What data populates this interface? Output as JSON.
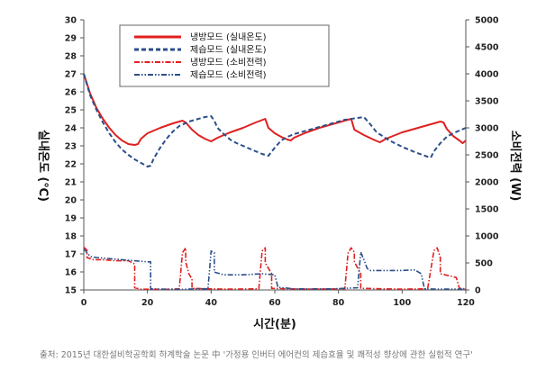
{
  "caption": "출처: 2015년 대한설비학공학회 하계학술 논문 中 '가정용 인버터 에어컨의 제습효율 및 쾌적성 향상에 관한 실험적 연구'",
  "chart_data": {
    "type": "line",
    "xlabel": "시간(분)",
    "ylabel": "실내온도 (℃)",
    "y2label": "소비전력 (W)",
    "xlim": [
      0,
      120
    ],
    "ylim": [
      15,
      30
    ],
    "y2lim": [
      0,
      5000
    ],
    "x_ticks": [
      0,
      20,
      40,
      60,
      80,
      100,
      120
    ],
    "y_ticks": [
      15,
      16,
      17,
      18,
      19,
      20,
      21,
      22,
      23,
      24,
      25,
      26,
      27,
      28,
      29,
      30
    ],
    "y2_ticks": [
      0,
      500,
      1000,
      1500,
      2000,
      2500,
      3000,
      3500,
      4000,
      4500,
      5000
    ],
    "grid": false,
    "legend_position": "top-left",
    "series": [
      {
        "name": "냉방모드 (실내온도)",
        "axis": "left",
        "color": "#e02020",
        "style": "solid",
        "points": [
          [
            0,
            27.0
          ],
          [
            2,
            25.9
          ],
          [
            4,
            25.1
          ],
          [
            6,
            24.5
          ],
          [
            8,
            24.0
          ],
          [
            10,
            23.6
          ],
          [
            12,
            23.3
          ],
          [
            14,
            23.1
          ],
          [
            16,
            23.05
          ],
          [
            17,
            23.1
          ],
          [
            18,
            23.4
          ],
          [
            20,
            23.7
          ],
          [
            24,
            24.0
          ],
          [
            28,
            24.25
          ],
          [
            31,
            24.4
          ],
          [
            32,
            24.3
          ],
          [
            34,
            23.9
          ],
          [
            36,
            23.6
          ],
          [
            38,
            23.4
          ],
          [
            40,
            23.25
          ],
          [
            42,
            23.45
          ],
          [
            46,
            23.75
          ],
          [
            50,
            24.0
          ],
          [
            54,
            24.3
          ],
          [
            57,
            24.5
          ],
          [
            58,
            24.0
          ],
          [
            60,
            23.7
          ],
          [
            62,
            23.5
          ],
          [
            64,
            23.35
          ],
          [
            65,
            23.3
          ],
          [
            66,
            23.45
          ],
          [
            70,
            23.75
          ],
          [
            74,
            24.0
          ],
          [
            78,
            24.2
          ],
          [
            82,
            24.4
          ],
          [
            84,
            24.5
          ],
          [
            85,
            23.9
          ],
          [
            88,
            23.6
          ],
          [
            91,
            23.35
          ],
          [
            93,
            23.2
          ],
          [
            95,
            23.4
          ],
          [
            100,
            23.75
          ],
          [
            105,
            24.0
          ],
          [
            110,
            24.25
          ],
          [
            112,
            24.35
          ],
          [
            113,
            24.3
          ],
          [
            114,
            23.95
          ],
          [
            116,
            23.55
          ],
          [
            118,
            23.3
          ],
          [
            119,
            23.15
          ],
          [
            120,
            23.3
          ]
        ]
      },
      {
        "name": "제습모드 (실내온도)",
        "axis": "left",
        "color": "#2c4f8a",
        "style": "dashed",
        "points": [
          [
            0,
            27.0
          ],
          [
            2,
            25.8
          ],
          [
            4,
            25.0
          ],
          [
            6,
            24.3
          ],
          [
            8,
            23.7
          ],
          [
            10,
            23.2
          ],
          [
            12,
            22.8
          ],
          [
            14,
            22.5
          ],
          [
            16,
            22.25
          ],
          [
            18,
            22.05
          ],
          [
            20,
            21.85
          ],
          [
            21,
            21.9
          ],
          [
            22,
            22.3
          ],
          [
            24,
            22.9
          ],
          [
            26,
            23.4
          ],
          [
            28,
            23.8
          ],
          [
            30,
            24.1
          ],
          [
            33,
            24.35
          ],
          [
            36,
            24.5
          ],
          [
            38,
            24.6
          ],
          [
            40,
            24.65
          ],
          [
            41,
            24.4
          ],
          [
            42,
            24.0
          ],
          [
            44,
            23.65
          ],
          [
            46,
            23.35
          ],
          [
            48,
            23.15
          ],
          [
            50,
            23.0
          ],
          [
            52,
            22.85
          ],
          [
            54,
            22.7
          ],
          [
            56,
            22.55
          ],
          [
            58,
            22.45
          ],
          [
            60,
            22.9
          ],
          [
            62,
            23.3
          ],
          [
            64,
            23.5
          ],
          [
            66,
            23.65
          ],
          [
            70,
            23.85
          ],
          [
            74,
            24.05
          ],
          [
            78,
            24.25
          ],
          [
            82,
            24.45
          ],
          [
            86,
            24.55
          ],
          [
            88,
            24.6
          ],
          [
            90,
            24.2
          ],
          [
            92,
            23.75
          ],
          [
            96,
            23.3
          ],
          [
            100,
            22.95
          ],
          [
            104,
            22.65
          ],
          [
            108,
            22.4
          ],
          [
            109,
            22.35
          ],
          [
            110,
            22.7
          ],
          [
            112,
            23.15
          ],
          [
            114,
            23.5
          ],
          [
            116,
            23.7
          ],
          [
            118,
            23.85
          ],
          [
            120,
            24.0
          ]
        ]
      },
      {
        "name": "냉방모드 (소비전력)",
        "axis": "right",
        "color": "#e02020",
        "style": "dashdot",
        "points": [
          [
            0,
            790
          ],
          [
            1,
            740
          ],
          [
            1,
            600
          ],
          [
            3,
            560
          ],
          [
            6,
            560
          ],
          [
            10,
            540
          ],
          [
            14,
            540
          ],
          [
            16,
            480
          ],
          [
            16,
            40
          ],
          [
            18,
            15
          ],
          [
            25,
            10
          ],
          [
            30,
            20
          ],
          [
            31,
            690
          ],
          [
            32,
            780
          ],
          [
            32,
            520
          ],
          [
            33,
            300
          ],
          [
            34,
            200
          ],
          [
            34,
            30
          ],
          [
            40,
            20
          ],
          [
            45,
            15
          ],
          [
            55,
            20
          ],
          [
            56,
            720
          ],
          [
            57,
            780
          ],
          [
            57,
            500
          ],
          [
            59,
            300
          ],
          [
            59,
            30
          ],
          [
            64,
            20
          ],
          [
            70,
            15
          ],
          [
            75,
            15
          ],
          [
            82,
            20
          ],
          [
            83,
            680
          ],
          [
            84,
            780
          ],
          [
            85,
            700
          ],
          [
            85,
            520
          ],
          [
            87,
            300
          ],
          [
            87,
            30
          ],
          [
            95,
            20
          ],
          [
            100,
            15
          ],
          [
            108,
            20
          ],
          [
            110,
            730
          ],
          [
            111,
            780
          ],
          [
            112,
            600
          ],
          [
            112,
            300
          ],
          [
            115,
            260
          ],
          [
            117,
            230
          ],
          [
            118,
            30
          ],
          [
            120,
            20
          ]
        ]
      },
      {
        "name": "제습모드 (소비전력)",
        "axis": "right",
        "color": "#2c4f8a",
        "style": "dashdotdot",
        "points": [
          [
            0,
            760
          ],
          [
            2,
            620
          ],
          [
            4,
            600
          ],
          [
            8,
            580
          ],
          [
            12,
            560
          ],
          [
            16,
            540
          ],
          [
            20,
            520
          ],
          [
            21,
            520
          ],
          [
            21,
            20
          ],
          [
            30,
            10
          ],
          [
            35,
            20
          ],
          [
            39,
            20
          ],
          [
            40,
            720
          ],
          [
            41,
            690
          ],
          [
            41,
            330
          ],
          [
            44,
            280
          ],
          [
            50,
            280
          ],
          [
            56,
            300
          ],
          [
            58,
            290
          ],
          [
            60,
            280
          ],
          [
            61,
            50
          ],
          [
            66,
            20
          ],
          [
            72,
            20
          ],
          [
            78,
            20
          ],
          [
            86,
            40
          ],
          [
            87,
            700
          ],
          [
            88,
            560
          ],
          [
            89,
            400
          ],
          [
            90,
            360
          ],
          [
            95,
            360
          ],
          [
            100,
            360
          ],
          [
            104,
            370
          ],
          [
            106,
            300
          ],
          [
            107,
            20
          ],
          [
            112,
            15
          ],
          [
            118,
            15
          ],
          [
            120,
            10
          ]
        ]
      }
    ]
  }
}
